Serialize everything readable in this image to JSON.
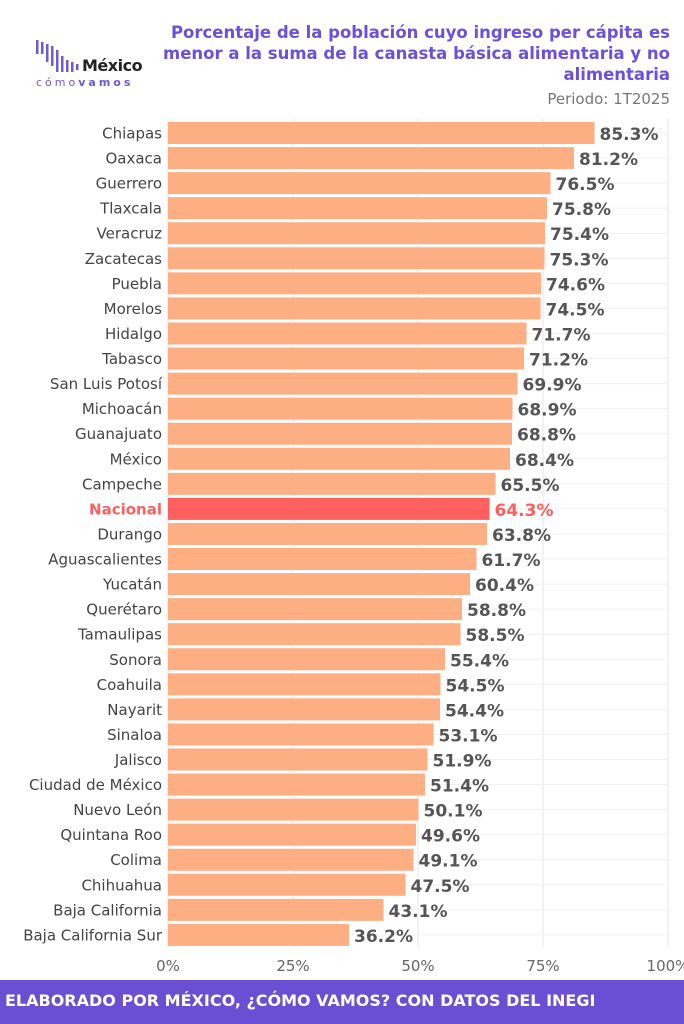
{
  "logo": {
    "brand": "México",
    "sub_light": "cómo",
    "sub_bold": "vamos"
  },
  "header": {
    "title": "Porcentaje de la población cuyo ingreso per cápita es menor a la suma de la canasta básica alimentaria y no alimentaria",
    "period": "Periodo: 1T2025"
  },
  "footer": {
    "text": "ELABORADO POR MÉXICO, ¿CÓMO VAMOS? CON DATOS DEL INEGI"
  },
  "colors": {
    "bar": "#fdae82",
    "highlight": "#fe5f5f",
    "accent": "#6a4fd4",
    "label": "#555555"
  },
  "chart_data": {
    "type": "bar",
    "orientation": "horizontal",
    "title": "Porcentaje de la población cuyo ingreso per cápita es menor a la suma de la canasta básica alimentaria y no alimentaria",
    "xlim": [
      0,
      100
    ],
    "xticks": [
      "0%",
      "25%",
      "50%",
      "75%",
      "100%"
    ],
    "xtick_values": [
      0,
      25,
      50,
      75,
      100
    ],
    "grid": true,
    "highlight": "Nacional",
    "categories": [
      "Chiapas",
      "Oaxaca",
      "Guerrero",
      "Tlaxcala",
      "Veracruz",
      "Zacatecas",
      "Puebla",
      "Morelos",
      "Hidalgo",
      "Tabasco",
      "San Luis Potosí",
      "Michoacán",
      "Guanajuato",
      "México",
      "Campeche",
      "Nacional",
      "Durango",
      "Aguascalientes",
      "Yucatán",
      "Querétaro",
      "Tamaulipas",
      "Sonora",
      "Coahuila",
      "Nayarit",
      "Sinaloa",
      "Jalisco",
      "Ciudad de México",
      "Nuevo León",
      "Quintana Roo",
      "Colima",
      "Chihuahua",
      "Baja California",
      "Baja California Sur"
    ],
    "values": [
      85.3,
      81.2,
      76.5,
      75.8,
      75.4,
      75.3,
      74.6,
      74.5,
      71.7,
      71.2,
      69.9,
      68.9,
      68.8,
      68.4,
      65.5,
      64.3,
      63.8,
      61.7,
      60.4,
      58.8,
      58.5,
      55.4,
      54.5,
      54.4,
      53.1,
      51.9,
      51.4,
      50.1,
      49.6,
      49.1,
      47.5,
      43.1,
      36.2
    ],
    "value_labels": [
      "85.3%",
      "81.2%",
      "76.5%",
      "75.8%",
      "75.4%",
      "75.3%",
      "74.6%",
      "74.5%",
      "71.7%",
      "71.2%",
      "69.9%",
      "68.9%",
      "68.8%",
      "68.4%",
      "65.5%",
      "64.3%",
      "63.8%",
      "61.7%",
      "60.4%",
      "58.8%",
      "58.5%",
      "55.4%",
      "54.5%",
      "54.4%",
      "53.1%",
      "51.9%",
      "51.4%",
      "50.1%",
      "49.6%",
      "49.1%",
      "47.5%",
      "43.1%",
      "36.2%"
    ]
  }
}
